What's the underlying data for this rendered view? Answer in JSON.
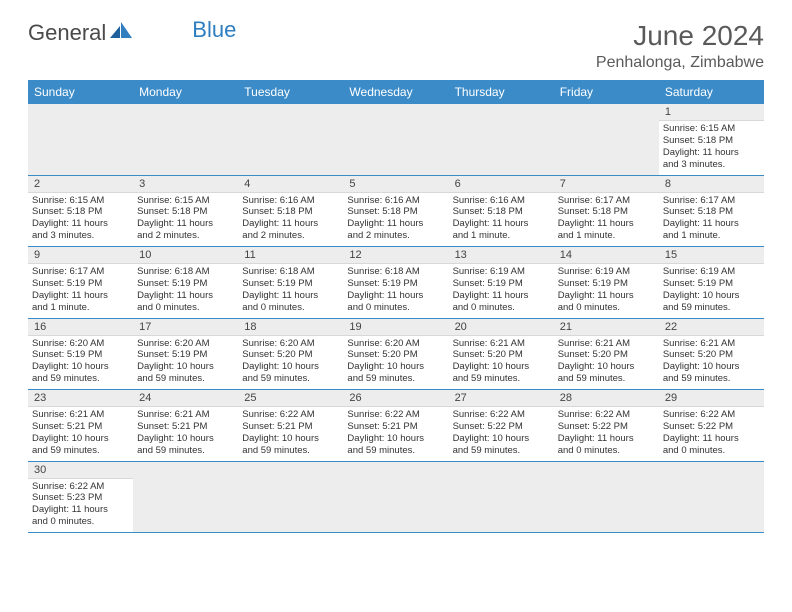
{
  "brand": {
    "part1": "General",
    "part2": "Blue"
  },
  "title": "June 2024",
  "location": "Penhalonga, Zimbabwe",
  "headerColor": "#3b8bc8",
  "weekdays": [
    "Sunday",
    "Monday",
    "Tuesday",
    "Wednesday",
    "Thursday",
    "Friday",
    "Saturday"
  ],
  "days": [
    {
      "n": 1,
      "sunrise": "6:15 AM",
      "sunset": "5:18 PM",
      "daylight": "11 hours and 3 minutes."
    },
    {
      "n": 2,
      "sunrise": "6:15 AM",
      "sunset": "5:18 PM",
      "daylight": "11 hours and 3 minutes."
    },
    {
      "n": 3,
      "sunrise": "6:15 AM",
      "sunset": "5:18 PM",
      "daylight": "11 hours and 2 minutes."
    },
    {
      "n": 4,
      "sunrise": "6:16 AM",
      "sunset": "5:18 PM",
      "daylight": "11 hours and 2 minutes."
    },
    {
      "n": 5,
      "sunrise": "6:16 AM",
      "sunset": "5:18 PM",
      "daylight": "11 hours and 2 minutes."
    },
    {
      "n": 6,
      "sunrise": "6:16 AM",
      "sunset": "5:18 PM",
      "daylight": "11 hours and 1 minute."
    },
    {
      "n": 7,
      "sunrise": "6:17 AM",
      "sunset": "5:18 PM",
      "daylight": "11 hours and 1 minute."
    },
    {
      "n": 8,
      "sunrise": "6:17 AM",
      "sunset": "5:18 PM",
      "daylight": "11 hours and 1 minute."
    },
    {
      "n": 9,
      "sunrise": "6:17 AM",
      "sunset": "5:19 PM",
      "daylight": "11 hours and 1 minute."
    },
    {
      "n": 10,
      "sunrise": "6:18 AM",
      "sunset": "5:19 PM",
      "daylight": "11 hours and 0 minutes."
    },
    {
      "n": 11,
      "sunrise": "6:18 AM",
      "sunset": "5:19 PM",
      "daylight": "11 hours and 0 minutes."
    },
    {
      "n": 12,
      "sunrise": "6:18 AM",
      "sunset": "5:19 PM",
      "daylight": "11 hours and 0 minutes."
    },
    {
      "n": 13,
      "sunrise": "6:19 AM",
      "sunset": "5:19 PM",
      "daylight": "11 hours and 0 minutes."
    },
    {
      "n": 14,
      "sunrise": "6:19 AM",
      "sunset": "5:19 PM",
      "daylight": "11 hours and 0 minutes."
    },
    {
      "n": 15,
      "sunrise": "6:19 AM",
      "sunset": "5:19 PM",
      "daylight": "10 hours and 59 minutes."
    },
    {
      "n": 16,
      "sunrise": "6:20 AM",
      "sunset": "5:19 PM",
      "daylight": "10 hours and 59 minutes."
    },
    {
      "n": 17,
      "sunrise": "6:20 AM",
      "sunset": "5:19 PM",
      "daylight": "10 hours and 59 minutes."
    },
    {
      "n": 18,
      "sunrise": "6:20 AM",
      "sunset": "5:20 PM",
      "daylight": "10 hours and 59 minutes."
    },
    {
      "n": 19,
      "sunrise": "6:20 AM",
      "sunset": "5:20 PM",
      "daylight": "10 hours and 59 minutes."
    },
    {
      "n": 20,
      "sunrise": "6:21 AM",
      "sunset": "5:20 PM",
      "daylight": "10 hours and 59 minutes."
    },
    {
      "n": 21,
      "sunrise": "6:21 AM",
      "sunset": "5:20 PM",
      "daylight": "10 hours and 59 minutes."
    },
    {
      "n": 22,
      "sunrise": "6:21 AM",
      "sunset": "5:20 PM",
      "daylight": "10 hours and 59 minutes."
    },
    {
      "n": 23,
      "sunrise": "6:21 AM",
      "sunset": "5:21 PM",
      "daylight": "10 hours and 59 minutes."
    },
    {
      "n": 24,
      "sunrise": "6:21 AM",
      "sunset": "5:21 PM",
      "daylight": "10 hours and 59 minutes."
    },
    {
      "n": 25,
      "sunrise": "6:22 AM",
      "sunset": "5:21 PM",
      "daylight": "10 hours and 59 minutes."
    },
    {
      "n": 26,
      "sunrise": "6:22 AM",
      "sunset": "5:21 PM",
      "daylight": "10 hours and 59 minutes."
    },
    {
      "n": 27,
      "sunrise": "6:22 AM",
      "sunset": "5:22 PM",
      "daylight": "10 hours and 59 minutes."
    },
    {
      "n": 28,
      "sunrise": "6:22 AM",
      "sunset": "5:22 PM",
      "daylight": "11 hours and 0 minutes."
    },
    {
      "n": 29,
      "sunrise": "6:22 AM",
      "sunset": "5:22 PM",
      "daylight": "11 hours and 0 minutes."
    },
    {
      "n": 30,
      "sunrise": "6:22 AM",
      "sunset": "5:23 PM",
      "daylight": "11 hours and 0 minutes."
    }
  ],
  "firstDayOfWeek": 6,
  "labels": {
    "sunrise": "Sunrise:",
    "sunset": "Sunset:",
    "daylight": "Daylight:"
  }
}
